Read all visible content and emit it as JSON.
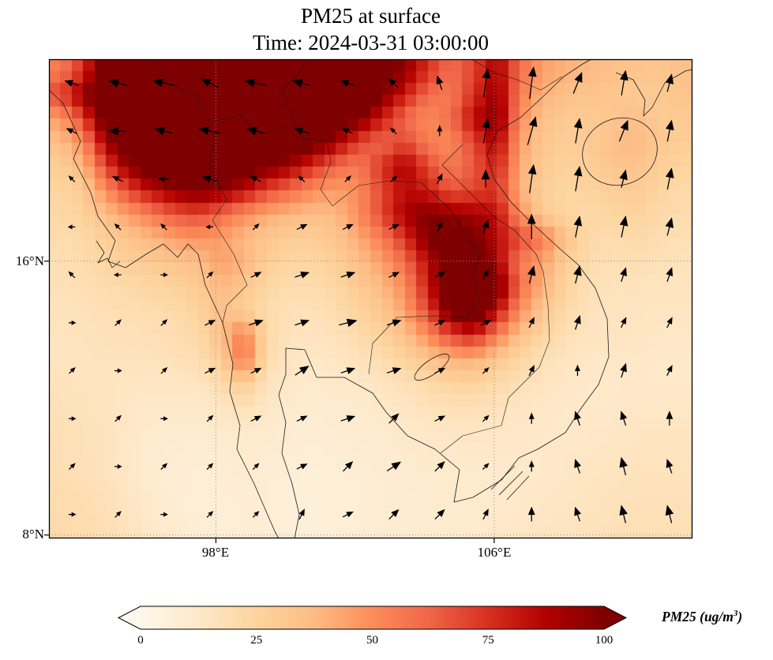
{
  "title": "PM25 at surface",
  "subtitle": "Time: 2024-03-31 03:00:00",
  "axes": {
    "lon_range": [
      93.2,
      111.7
    ],
    "lat_range": [
      7.9,
      21.9
    ],
    "y_ticks": [
      {
        "label": "16°N",
        "lat": 16
      },
      {
        "label": "8°N",
        "lat": 8
      }
    ],
    "x_ticks": [
      {
        "label": "98°E",
        "lon": 98
      },
      {
        "label": "106°E",
        "lon": 106
      }
    ]
  },
  "colorbar": {
    "min": 0,
    "max": 100,
    "extend": "both",
    "ticks": [
      "0",
      "25",
      "50",
      "75",
      "100"
    ],
    "tick_values": [
      0,
      25,
      50,
      75,
      100
    ],
    "label_prefix": "PM25 (ug/m",
    "label_sup": "3",
    "label_suffix": ")"
  },
  "colormap": {
    "name": "OrRd",
    "stops": [
      "#fff7ec",
      "#fee8c8",
      "#fdd49e",
      "#fdbb84",
      "#fc8d59",
      "#ef6548",
      "#d7301f",
      "#b30000",
      "#7f0000"
    ]
  },
  "chart_data": {
    "type": "heatmap",
    "variable": "PM25",
    "units": "ug/m3",
    "time": "2024-03-31 03:00:00",
    "title": "PM25 at surface",
    "lon_range": [
      93.2,
      111.7
    ],
    "lat_range": [
      7.9,
      21.9
    ],
    "value_range": [
      0,
      100
    ],
    "overlays": [
      "coastlines",
      "wind_quiver",
      "lat_lon_gridlines"
    ],
    "grid_note": "PM25 ug/m3, rows north-to-south (21.9N to 7.9N), cols west-to-east (93.2E to 111.7E), values over 100 saturate colormap",
    "grid": [
      [
        55,
        75,
        110,
        120,
        130,
        130,
        130,
        130,
        130,
        130,
        130,
        130,
        130,
        125,
        110,
        95,
        75,
        60,
        70,
        90,
        60,
        45,
        40,
        38,
        35,
        33,
        32,
        35
      ],
      [
        70,
        95,
        120,
        130,
        130,
        130,
        130,
        130,
        130,
        130,
        130,
        130,
        130,
        120,
        100,
        80,
        60,
        55,
        75,
        95,
        55,
        40,
        35,
        33,
        32,
        30,
        30,
        33
      ],
      [
        45,
        70,
        110,
        125,
        130,
        130,
        130,
        130,
        130,
        130,
        130,
        125,
        115,
        100,
        80,
        60,
        50,
        60,
        85,
        100,
        50,
        35,
        30,
        30,
        32,
        35,
        30,
        30
      ],
      [
        35,
        50,
        90,
        115,
        125,
        130,
        130,
        130,
        125,
        120,
        115,
        105,
        90,
        70,
        60,
        70,
        55,
        50,
        70,
        90,
        45,
        32,
        28,
        30,
        35,
        38,
        32,
        28
      ],
      [
        28,
        38,
        70,
        95,
        110,
        120,
        125,
        120,
        110,
        100,
        90,
        75,
        60,
        55,
        75,
        90,
        70,
        55,
        65,
        80,
        42,
        30,
        26,
        28,
        32,
        34,
        28,
        25
      ],
      [
        24,
        30,
        50,
        70,
        85,
        95,
        100,
        95,
        85,
        70,
        60,
        50,
        45,
        50,
        70,
        85,
        80,
        65,
        70,
        75,
        40,
        28,
        24,
        25,
        28,
        30,
        25,
        22
      ],
      [
        22,
        26,
        35,
        45,
        55,
        65,
        70,
        60,
        50,
        42,
        38,
        35,
        38,
        50,
        70,
        90,
        100,
        95,
        90,
        85,
        50,
        30,
        24,
        22,
        24,
        26,
        22,
        20
      ],
      [
        20,
        22,
        28,
        33,
        38,
        45,
        48,
        45,
        38,
        32,
        28,
        28,
        32,
        42,
        55,
        75,
        100,
        115,
        105,
        85,
        70,
        55,
        35,
        22,
        20,
        22,
        20,
        18
      ],
      [
        18,
        20,
        24,
        28,
        30,
        33,
        36,
        45,
        40,
        28,
        24,
        24,
        28,
        35,
        45,
        60,
        85,
        110,
        120,
        90,
        55,
        45,
        28,
        20,
        18,
        18,
        17,
        16
      ],
      [
        17,
        18,
        20,
        22,
        24,
        26,
        30,
        38,
        32,
        24,
        20,
        20,
        24,
        30,
        38,
        50,
        80,
        115,
        130,
        105,
        60,
        40,
        25,
        18,
        16,
        16,
        15,
        15
      ],
      [
        16,
        17,
        18,
        19,
        20,
        22,
        25,
        35,
        28,
        20,
        17,
        17,
        20,
        25,
        32,
        45,
        70,
        105,
        120,
        85,
        50,
        32,
        22,
        16,
        15,
        15,
        14,
        14
      ],
      [
        15,
        16,
        17,
        17,
        18,
        19,
        22,
        35,
        55,
        22,
        16,
        15,
        17,
        20,
        26,
        35,
        50,
        70,
        80,
        55,
        35,
        24,
        18,
        15,
        14,
        14,
        13,
        13
      ],
      [
        15,
        15,
        16,
        16,
        16,
        17,
        19,
        28,
        60,
        20,
        14,
        13,
        14,
        16,
        20,
        26,
        33,
        40,
        42,
        32,
        24,
        18,
        15,
        13,
        13,
        13,
        12,
        12
      ],
      [
        16,
        15,
        15,
        14,
        14,
        14,
        15,
        20,
        32,
        16,
        12,
        11,
        12,
        13,
        15,
        18,
        22,
        26,
        26,
        22,
        18,
        15,
        13,
        12,
        12,
        12,
        12,
        12
      ],
      [
        17,
        16,
        15,
        13,
        12,
        12,
        12,
        14,
        18,
        13,
        10,
        10,
        10,
        11,
        12,
        14,
        16,
        18,
        18,
        16,
        14,
        13,
        12,
        12,
        12,
        13,
        13,
        13
      ],
      [
        18,
        17,
        15,
        13,
        11,
        10,
        10,
        11,
        12,
        11,
        9,
        8,
        9,
        10,
        11,
        12,
        13,
        14,
        14,
        13,
        13,
        12,
        12,
        13,
        13,
        14,
        14,
        14
      ],
      [
        18,
        17,
        15,
        12,
        10,
        9,
        8,
        9,
        10,
        9,
        8,
        7,
        8,
        9,
        10,
        11,
        12,
        12,
        12,
        12,
        12,
        12,
        13,
        13,
        14,
        15,
        15,
        15
      ],
      [
        19,
        18,
        16,
        13,
        10,
        8,
        7,
        8,
        9,
        8,
        7,
        7,
        7,
        8,
        9,
        10,
        11,
        11,
        11,
        11,
        12,
        12,
        13,
        14,
        15,
        16,
        16,
        16
      ],
      [
        20,
        19,
        17,
        14,
        11,
        9,
        7,
        7,
        8,
        8,
        7,
        6,
        7,
        8,
        9,
        9,
        10,
        10,
        11,
        11,
        12,
        13,
        14,
        15,
        16,
        17,
        17,
        17
      ],
      [
        21,
        20,
        18,
        15,
        12,
        10,
        8,
        7,
        8,
        8,
        7,
        7,
        7,
        8,
        9,
        9,
        10,
        10,
        11,
        12,
        13,
        14,
        15,
        16,
        17,
        18,
        18,
        18
      ]
    ],
    "wind": {
      "cols": 14,
      "rows": 10,
      "note": "u eastward, v northward, relative units; rows north-to-south",
      "u": [
        [
          -1.5,
          -2,
          -2.5,
          -2,
          -2.5,
          -2,
          -1.5,
          -1,
          -0.5,
          0.5,
          0.5,
          1,
          0.5,
          0.5
        ],
        [
          -1,
          -2,
          -2,
          -2.5,
          -2,
          -1.5,
          -1,
          -0.5,
          0,
          0.5,
          1,
          0.5,
          1,
          0.5
        ],
        [
          -0.5,
          -1,
          -1,
          -1.5,
          -1,
          -0.5,
          0.5,
          0.5,
          0.5,
          0,
          0.5,
          0.5,
          0.5,
          0.5
        ],
        [
          -0.5,
          -0.5,
          -0.5,
          -0.5,
          0.5,
          1,
          1,
          1,
          0.5,
          0.5,
          0,
          0.5,
          0.5,
          0.5
        ],
        [
          -0.5,
          -0.5,
          0.5,
          0.5,
          1,
          1.5,
          1.5,
          1,
          1,
          0.5,
          0.5,
          0.5,
          0.5,
          0.5
        ],
        [
          0.5,
          0.5,
          0.5,
          1,
          1.5,
          1.5,
          2,
          1.5,
          1,
          1,
          0.5,
          0.5,
          0.5,
          0.5
        ],
        [
          0.5,
          0.5,
          0.5,
          1,
          1,
          1.5,
          1.5,
          1.5,
          1,
          0.5,
          0.5,
          0,
          0.5,
          0.5
        ],
        [
          0.5,
          0.5,
          0.5,
          0.5,
          1,
          1,
          1.5,
          1,
          1,
          0.5,
          0,
          -0.5,
          -0.5,
          0
        ],
        [
          0.5,
          0.5,
          0.5,
          0.5,
          0.5,
          1,
          1,
          1.5,
          1,
          0.5,
          0,
          -0.5,
          -0.5,
          -0.5
        ],
        [
          0.5,
          0.5,
          0.5,
          0.5,
          0.5,
          0.5,
          1,
          1,
          1,
          0.5,
          0,
          -0.5,
          -0.5,
          -0.5
        ]
      ],
      "v": [
        [
          0.5,
          0.5,
          0.5,
          1,
          0.5,
          0.5,
          0.5,
          1,
          1.5,
          3.5,
          4,
          2.5,
          3,
          2
        ],
        [
          0.5,
          0,
          0.5,
          0.5,
          0.5,
          0.5,
          0.5,
          0.5,
          1,
          3,
          3.5,
          3,
          2.5,
          2.5
        ],
        [
          0.5,
          0.5,
          0,
          0.5,
          0.5,
          0.5,
          0.5,
          0.5,
          1,
          2,
          3.5,
          3,
          2,
          2.5
        ],
        [
          0,
          0.5,
          0.5,
          0,
          0.5,
          0.5,
          0.5,
          0.5,
          1,
          1.5,
          3,
          2.5,
          2.5,
          2
        ],
        [
          0.5,
          0,
          0,
          0.5,
          0.5,
          0.5,
          0.5,
          0.5,
          0.5,
          1,
          2,
          2,
          1.5,
          1.5
        ],
        [
          0,
          0.5,
          0.5,
          0.5,
          0.5,
          0.5,
          0.5,
          0.5,
          0.5,
          0.5,
          1,
          1.5,
          1,
          1
        ],
        [
          0.5,
          0,
          0.5,
          0.5,
          0.5,
          1,
          0.5,
          0.5,
          0.5,
          0.5,
          1,
          1,
          1.5,
          1
        ],
        [
          0,
          0.5,
          0,
          0.5,
          0.5,
          0.5,
          0.5,
          1,
          0.5,
          0.5,
          1,
          1.5,
          1.5,
          1.5
        ],
        [
          0.5,
          0,
          0.5,
          0.5,
          0.5,
          0.5,
          1,
          1,
          1,
          0.5,
          1,
          1.5,
          2,
          1.5
        ],
        [
          0,
          0.5,
          0,
          0.5,
          0.5,
          1,
          0.5,
          1,
          1,
          1,
          1.5,
          1.5,
          2,
          2
        ]
      ]
    }
  }
}
